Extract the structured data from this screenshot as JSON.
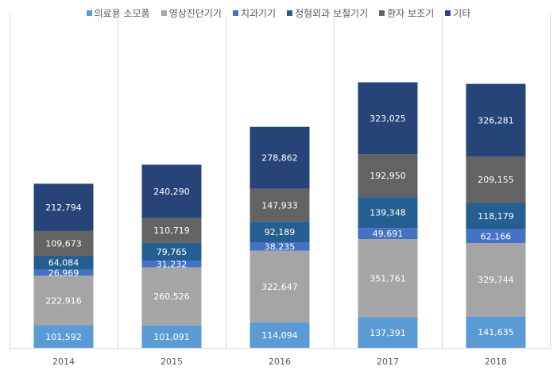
{
  "chart_data": {
    "type": "bar",
    "stacked": true,
    "categories": [
      "2014",
      "2015",
      "2016",
      "2017",
      "2018"
    ],
    "series": [
      {
        "name": "의료용 소모품",
        "color": "#5B9BD5",
        "values": [
          101592,
          101091,
          114094,
          137391,
          141635
        ]
      },
      {
        "name": "영상진단기기",
        "color": "#A5A5A5",
        "values": [
          222916,
          260526,
          322647,
          351761,
          329744
        ]
      },
      {
        "name": "치과기기",
        "color": "#4472C4",
        "values": [
          26969,
          31232,
          38235,
          49691,
          62166
        ]
      },
      {
        "name": "정형외과 보철기기",
        "color": "#255E91",
        "values": [
          64084,
          79765,
          92189,
          139348,
          118179
        ]
      },
      {
        "name": "환자 보조기",
        "color": "#636363",
        "values": [
          109673,
          110719,
          147933,
          192950,
          209155
        ]
      },
      {
        "name": "기타",
        "color": "#264478",
        "values": [
          212794,
          240290,
          278862,
          323025,
          326281
        ]
      }
    ],
    "title": "",
    "xlabel": "",
    "ylabel": "",
    "ylim": [
      0,
      1500000
    ],
    "grid": "vertical separators",
    "legend": "top"
  }
}
